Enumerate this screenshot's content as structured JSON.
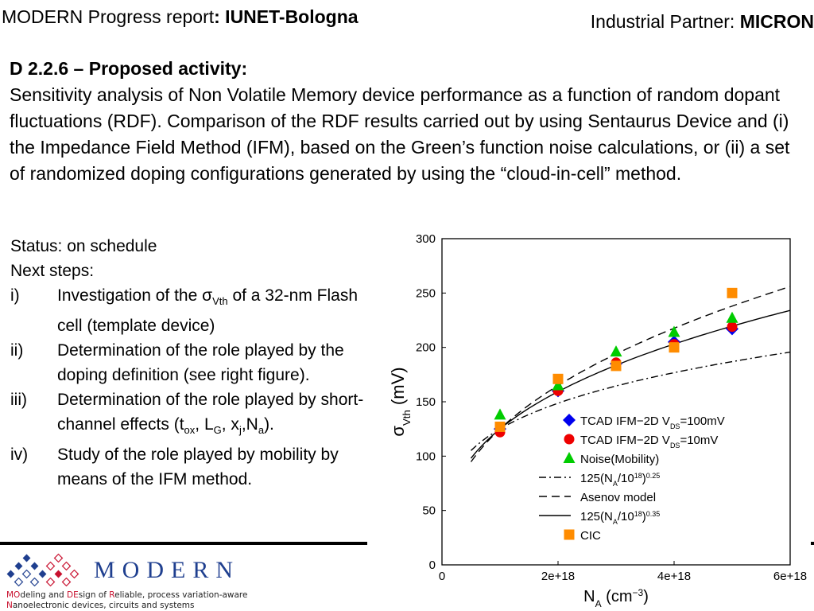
{
  "header": {
    "left_prefix": "MODERN Progress report",
    "left_bold": ": IUNET-Bologna",
    "right_prefix": "Industrial Partner: ",
    "right_bold": "MICRON"
  },
  "activity": {
    "heading": "D 2.2.6 – Proposed activity:",
    "body": "Sensitivity analysis of Non Volatile Memory device performance as a function of random dopant fluctuations (RDF). Comparison of the RDF results carried out by using Sentaurus Device and (i) the Impedance Field Method (IFM), based on the Green’s function noise calculations, or (ii) a set of randomized doping configurations generated by using the “cloud-in-cell” method."
  },
  "status": {
    "status_line": "Status: on schedule",
    "next_label": "Next steps:",
    "steps": [
      {
        "num": "i)",
        "pre": "Investigation of the σ",
        "sub": "Vth",
        "post": " of a 32-nm Flash cell (template device)"
      },
      {
        "num": "ii)",
        "text": "Determination of the role played by the doping definition (see right figure)."
      },
      {
        "num": "iii)",
        "pre": "Determination of the role played by short-channel effects (t",
        "s1": "ox",
        "m1": ", L",
        "s2": "G",
        "m2": ", x",
        "s3": "j",
        "m3": ",N",
        "s4": "a",
        "post": ")."
      },
      {
        "num": "iv)",
        "text": "Study of the role played by mobility by means of the IFM method."
      }
    ]
  },
  "chart_data": {
    "type": "scatter",
    "xlabel": "N",
    "xlabel_sub": "A",
    "xlabel_unit": " (cm",
    "xlabel_sup": "−3",
    "xlabel_end": ")",
    "ylabel": "σ",
    "ylabel_sub": "Vth",
    "ylabel_unit": " (mV)",
    "xlim": [
      0,
      6e+18
    ],
    "ylim": [
      0,
      300
    ],
    "x_ticks": [
      {
        "v": 0,
        "label": "0"
      },
      {
        "v": 2e+18,
        "label": "2e+18"
      },
      {
        "v": 4e+18,
        "label": "4e+18"
      },
      {
        "v": 6e+18,
        "label": "6e+18"
      }
    ],
    "y_ticks": [
      {
        "v": 0,
        "label": "0"
      },
      {
        "v": 50,
        "label": "50"
      },
      {
        "v": 100,
        "label": "100"
      },
      {
        "v": 150,
        "label": "150"
      },
      {
        "v": 200,
        "label": "200"
      },
      {
        "v": 250,
        "label": "250"
      },
      {
        "v": 300,
        "label": "300"
      }
    ],
    "series": [
      {
        "legend": "TCAD IFM−2D V",
        "legend_sub": "DS",
        "legend_post": "=100mV",
        "marker": "diamond",
        "color": "#0000ee",
        "x": [
          1e+18,
          2e+18,
          3e+18,
          4e+18,
          5e+18
        ],
        "y": [
          125,
          160,
          185,
          205,
          217
        ]
      },
      {
        "legend": "TCAD IFM−2D  V",
        "legend_sub": "DS",
        "legend_post": "=10mV",
        "marker": "circle",
        "color": "#ee0000",
        "x": [
          1e+18,
          2e+18,
          3e+18,
          4e+18,
          5e+18
        ],
        "y": [
          122,
          160,
          186,
          203,
          219
        ]
      },
      {
        "legend": "Noise(Mobility)",
        "marker": "triangle",
        "color": "#00cc00",
        "x": [
          1e+18,
          2e+18,
          3e+18,
          4e+18,
          5e+18
        ],
        "y": [
          138,
          165,
          196,
          214,
          227
        ]
      },
      {
        "legend": "CIC",
        "marker": "square",
        "color": "#ff8c00",
        "x": [
          1e+18,
          2e+18,
          3e+18,
          4e+18,
          5e+18
        ],
        "y": [
          127,
          171,
          183,
          200,
          250
        ]
      }
    ],
    "lines": [
      {
        "legend": "125(N",
        "legend_sub": "A",
        "legend_mid": "/10",
        "legend_sup": "18",
        "legend_post": ")",
        "legend_sup2": "0.25",
        "style": "dashdot",
        "coef": 125,
        "exp": 0.25
      },
      {
        "legend": "Asenov model",
        "style": "dashed",
        "coef": 125,
        "exp": 0.4
      },
      {
        "legend": "125(N",
        "legend_sub": "A",
        "legend_mid": "/10",
        "legend_sup": "18",
        "legend_post": ")",
        "legend_sup2": "0.35",
        "style": "solid",
        "coef": 125,
        "exp": 0.35
      }
    ]
  },
  "footer": {
    "logo_word": "MODERN",
    "tag1_a": "MO",
    "tag1_b": "deling and ",
    "tag1_c": "DE",
    "tag1_d": "sign of ",
    "tag1_e": "R",
    "tag1_f": "eliable, process variation-aware",
    "tag2_a": "N",
    "tag2_b": "anoelectronic devices, circuits and systems"
  }
}
